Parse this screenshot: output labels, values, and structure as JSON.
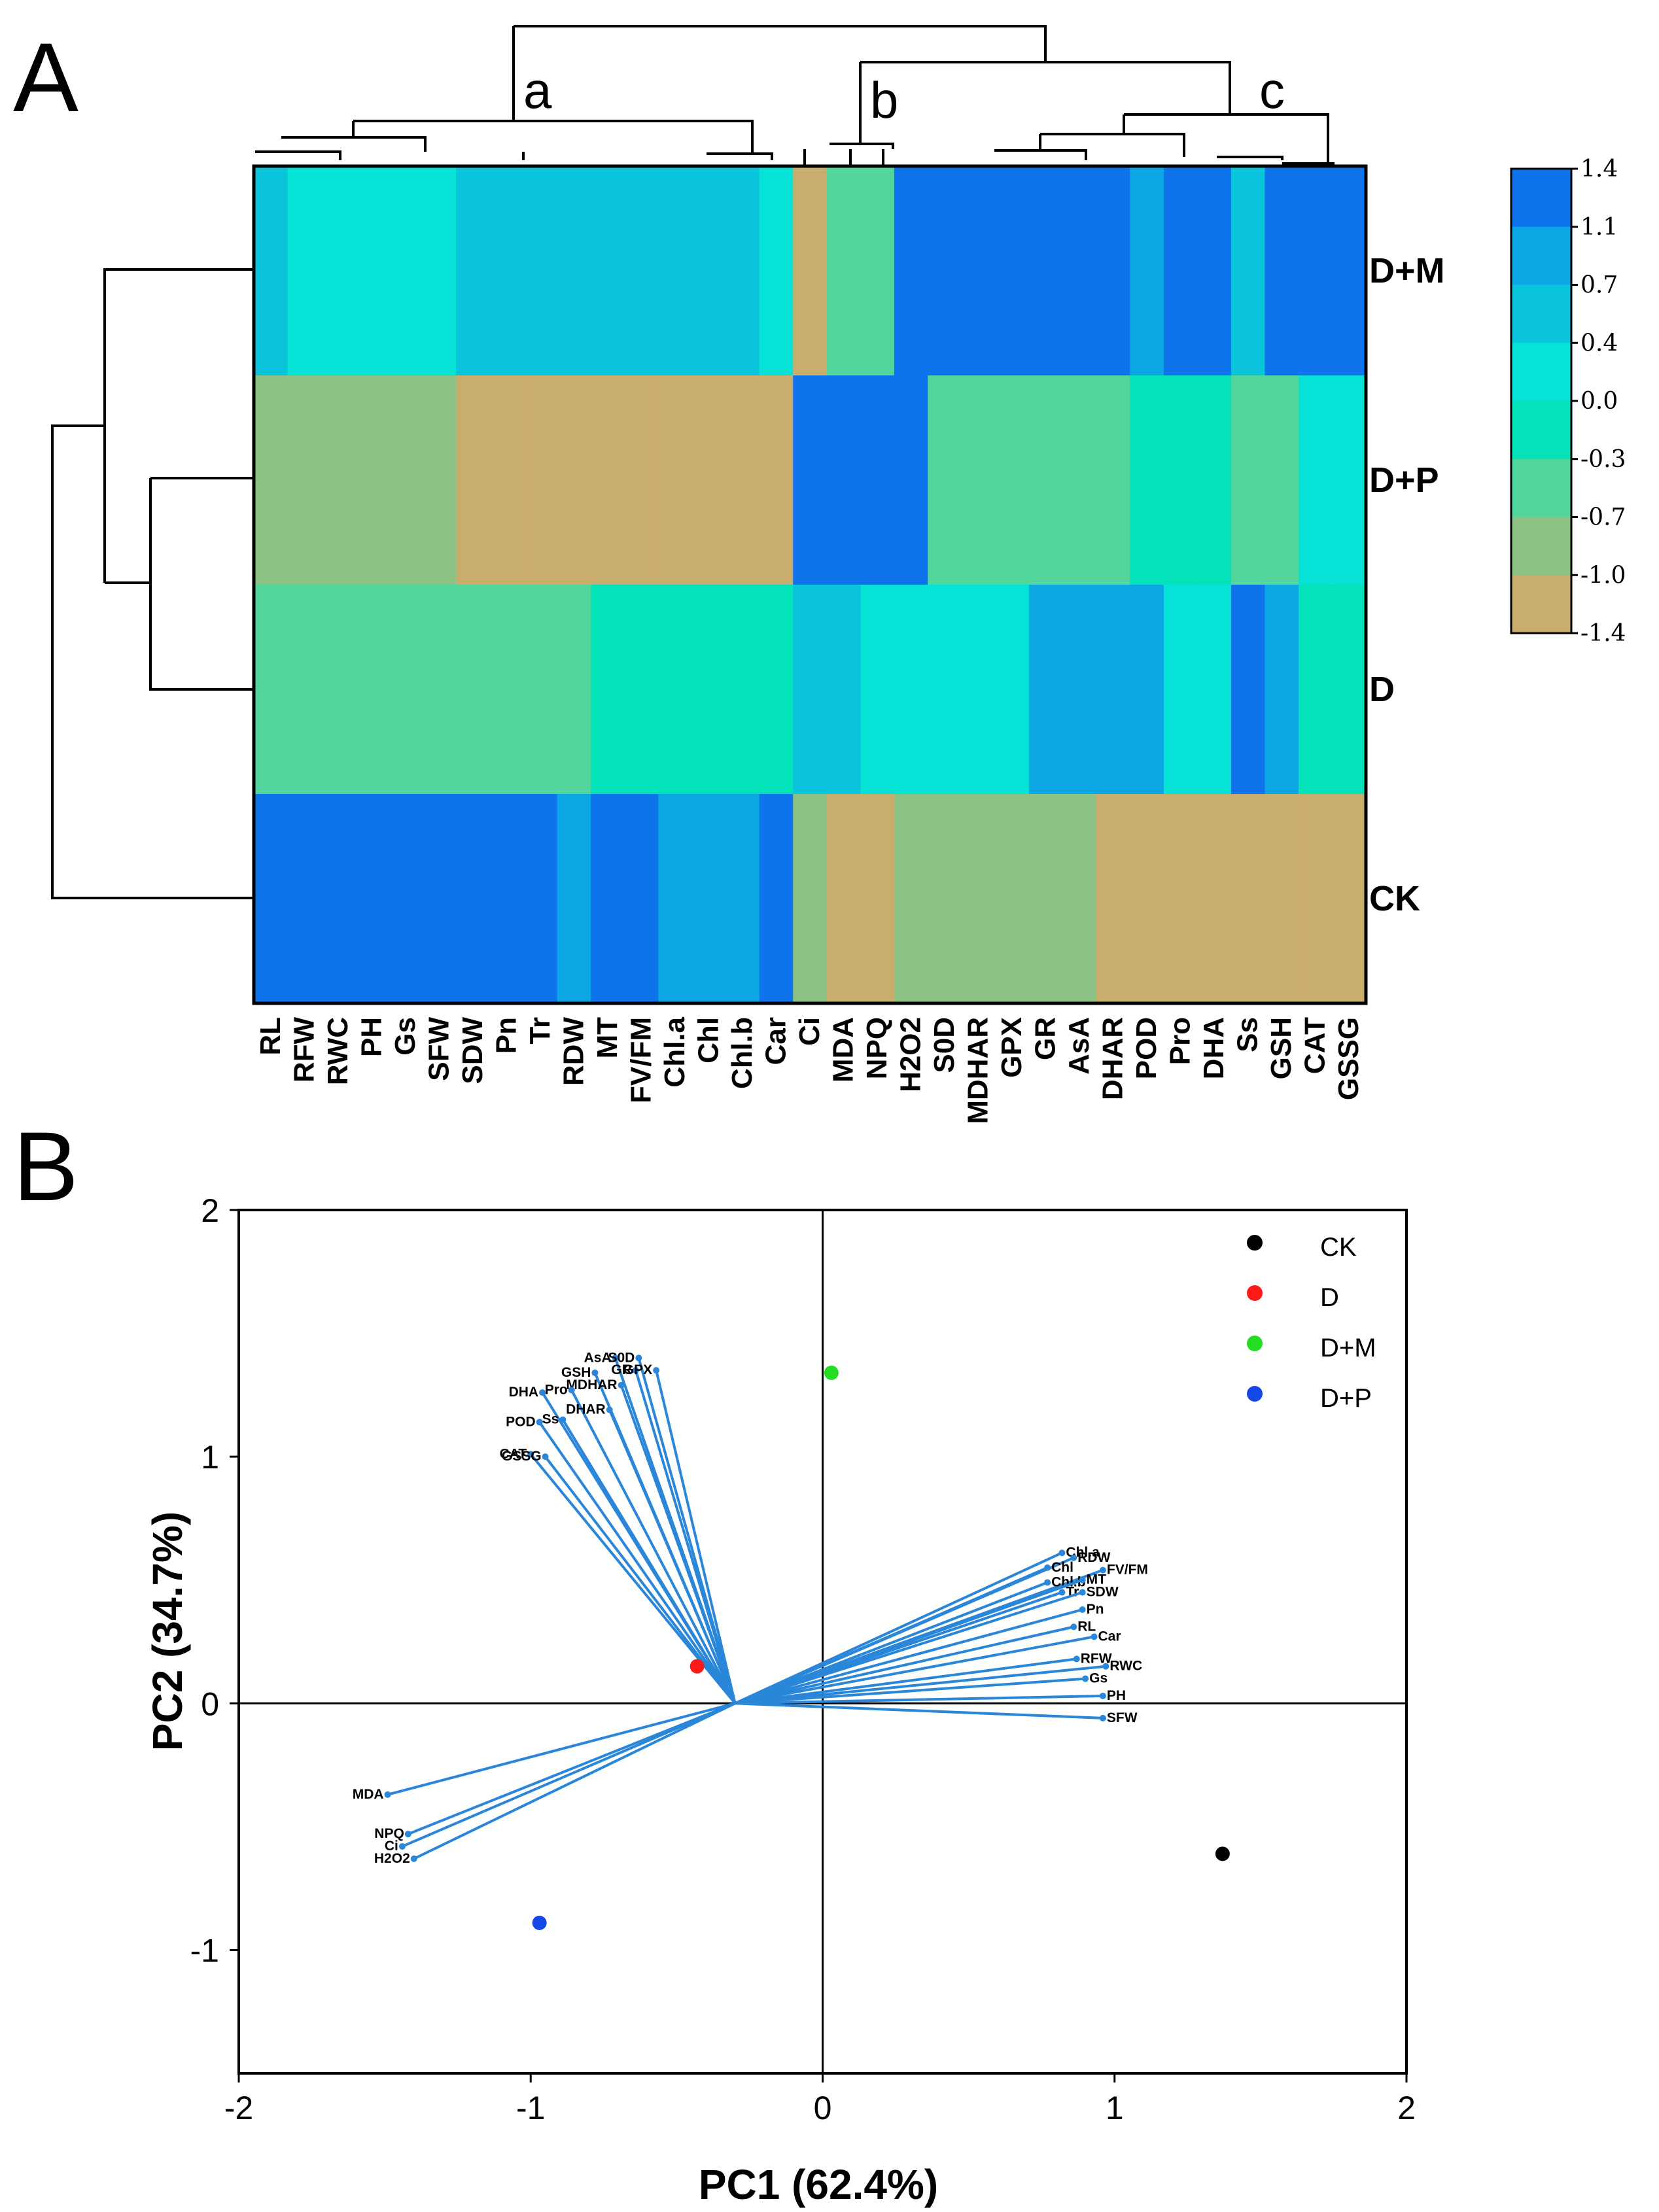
{
  "panels": {
    "a": "A",
    "b": "B"
  },
  "heatmap": {
    "rows": [
      "D+M",
      "D+P",
      "D",
      "CK"
    ],
    "columns": [
      "RL",
      "RFW",
      "RWC",
      "PH",
      "Gs",
      "SFW",
      "SDW",
      "Pn",
      "Tr",
      "RDW",
      "MT",
      "FV/FM",
      "Chl.a",
      "Chl",
      "Chl.b",
      "Car",
      "Ci",
      "MDA",
      "NPQ",
      "H2O2",
      "S0D",
      "MDHAR",
      "GPX",
      "GR",
      "AsA",
      "DHAR",
      "POD",
      "Pro",
      "DHA",
      "Ss",
      "GSH",
      "CAT",
      "GSSG"
    ],
    "cluster_labels": [
      "a",
      "b",
      "c"
    ],
    "colorbar": {
      "labels": [
        "1.4",
        "1.1",
        "0.7",
        "0.4",
        "0.0",
        "-0.3",
        "-0.7",
        "-1.0",
        "-1.4"
      ],
      "colors": [
        "#0f73ec",
        "#0ca6e5",
        "#0ac4dc",
        "#06e2d6",
        "#03e2b9",
        "#52d69e",
        "#8cc385",
        "#c9ad6c"
      ]
    },
    "cells": [
      [
        0.4,
        0.2,
        0.2,
        0.2,
        0.2,
        0.2,
        0.4,
        0.4,
        0.4,
        0.4,
        0.4,
        0.4,
        0.4,
        0.4,
        0.4,
        0.2,
        -1.1,
        -0.5,
        -0.5,
        1.2,
        1.2,
        1.2,
        1.2,
        1.2,
        1.2,
        1.2,
        0.7,
        1.2,
        1.2,
        0.4,
        1.2,
        1.2,
        1.2
      ],
      [
        -0.8,
        -0.8,
        -0.8,
        -0.8,
        -0.8,
        -0.8,
        -1.2,
        -1.2,
        -1.2,
        -1.2,
        -1.2,
        -1.2,
        -1.2,
        -1.2,
        -1.2,
        -1.2,
        1.2,
        1.2,
        1.2,
        1.2,
        -0.5,
        -0.5,
        -0.5,
        -0.5,
        -0.5,
        -0.5,
        -0.1,
        -0.1,
        -0.1,
        -0.5,
        -0.5,
        0.2,
        0.2
      ],
      [
        -0.5,
        -0.5,
        -0.5,
        -0.5,
        -0.5,
        -0.5,
        -0.5,
        -0.5,
        -0.5,
        -0.5,
        -0.1,
        -0.1,
        -0.1,
        -0.1,
        -0.1,
        -0.1,
        0.4,
        0.4,
        0.2,
        0.2,
        0.2,
        0.2,
        0.2,
        0.7,
        0.7,
        0.7,
        0.7,
        0.2,
        0.2,
        1.2,
        0.7,
        -0.1,
        -0.1
      ],
      [
        1.2,
        1.2,
        1.2,
        1.2,
        1.2,
        1.2,
        1.2,
        1.2,
        1.2,
        0.7,
        1.2,
        1.2,
        0.7,
        0.7,
        0.7,
        1.2,
        -0.8,
        -1.2,
        -1.2,
        -0.8,
        -0.8,
        -0.8,
        -0.8,
        -0.8,
        -0.8,
        -1.2,
        -1.2,
        -1.2,
        -1.2,
        -1.2,
        -1.2,
        -1.2,
        -1.2
      ]
    ]
  },
  "chart_data": {
    "type": "scatter",
    "title": "",
    "xlabel": "PC1 (62.4%)",
    "ylabel": "PC2 (34.7%)",
    "xlim": [
      -2,
      2
    ],
    "ylim": [
      -1.5,
      2
    ],
    "xticks": [
      "-2",
      "-1",
      "0",
      "1",
      "2"
    ],
    "yticks": [
      "2",
      "1",
      "0",
      "-1"
    ],
    "origin": [
      -0.3,
      0
    ],
    "series": [
      {
        "name": "CK",
        "color": "#000000",
        "x": 1.37,
        "y": -0.61
      },
      {
        "name": "D",
        "color": "#ff1a1a",
        "x": -0.43,
        "y": 0.15
      },
      {
        "name": "D+M",
        "color": "#22dd22",
        "x": 0.03,
        "y": 1.34
      },
      {
        "name": "D+P",
        "color": "#1447e6",
        "x": -0.97,
        "y": -0.89
      }
    ],
    "loadings": [
      {
        "label": "AsA",
        "x": -0.71,
        "y": 1.4
      },
      {
        "label": "S0D",
        "x": -0.63,
        "y": 1.4
      },
      {
        "label": "GSH",
        "x": -0.78,
        "y": 1.34
      },
      {
        "label": "GR",
        "x": -0.64,
        "y": 1.35
      },
      {
        "label": "GPX",
        "x": -0.57,
        "y": 1.35
      },
      {
        "label": "MDHAR",
        "x": -0.69,
        "y": 1.29
      },
      {
        "label": "DHA",
        "x": -0.96,
        "y": 1.26
      },
      {
        "label": "Pro",
        "x": -0.86,
        "y": 1.27
      },
      {
        "label": "DHAR",
        "x": -0.73,
        "y": 1.19
      },
      {
        "label": "POD",
        "x": -0.97,
        "y": 1.14
      },
      {
        "label": "Ss",
        "x": -0.89,
        "y": 1.15
      },
      {
        "label": "CAT",
        "x": -1.0,
        "y": 1.01
      },
      {
        "label": "GSSG",
        "x": -0.95,
        "y": 1.0
      },
      {
        "label": "Chl.a",
        "x": 0.82,
        "y": 0.61
      },
      {
        "label": "RDW",
        "x": 0.86,
        "y": 0.59
      },
      {
        "label": "Chl",
        "x": 0.77,
        "y": 0.55
      },
      {
        "label": "FV/FM",
        "x": 0.96,
        "y": 0.54
      },
      {
        "label": "Chl.b",
        "x": 0.77,
        "y": 0.49
      },
      {
        "label": "MT",
        "x": 0.89,
        "y": 0.5
      },
      {
        "label": "Tr",
        "x": 0.82,
        "y": 0.45
      },
      {
        "label": "SDW",
        "x": 0.89,
        "y": 0.45
      },
      {
        "label": "Pn",
        "x": 0.89,
        "y": 0.38
      },
      {
        "label": "RL",
        "x": 0.86,
        "y": 0.31
      },
      {
        "label": "Car",
        "x": 0.93,
        "y": 0.27
      },
      {
        "label": "RFW",
        "x": 0.87,
        "y": 0.18
      },
      {
        "label": "RWC",
        "x": 0.97,
        "y": 0.15
      },
      {
        "label": "Gs",
        "x": 0.9,
        "y": 0.1
      },
      {
        "label": "PH",
        "x": 0.96,
        "y": 0.03
      },
      {
        "label": "SFW",
        "x": 0.96,
        "y": -0.06
      },
      {
        "label": "MDA",
        "x": -1.49,
        "y": -0.37
      },
      {
        "label": "NPQ",
        "x": -1.42,
        "y": -0.53
      },
      {
        "label": "Ci",
        "x": -1.44,
        "y": -0.58
      },
      {
        "label": "H2O2",
        "x": -1.4,
        "y": -0.63
      }
    ]
  }
}
